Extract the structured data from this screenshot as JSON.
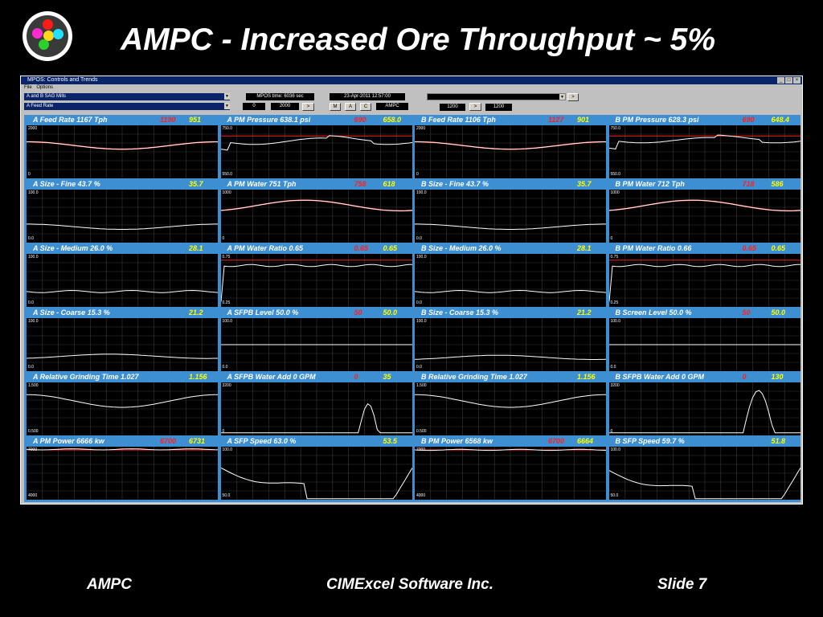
{
  "slide": {
    "title": "AMPC - Increased Ore Throughput ~ 5%",
    "footer_left": "AMPC",
    "footer_center": "CIMExcel Software Inc.",
    "footer_right": "Slide 7"
  },
  "window": {
    "title": "MPOS: Controls and Trends",
    "menu": [
      "File",
      "Options"
    ],
    "controls_buttons": [
      "_",
      "□",
      "×"
    ],
    "select1": "A and B SAG Mills",
    "select2": "A Feed Rate",
    "mpos_time": "MPOS time: 6036  sec",
    "date": "23-Apr-2011  12:57:00",
    "range_min": "0",
    "range_max": "2000",
    "nav_next": ">",
    "mode_buttons": [
      "M",
      "A",
      "C"
    ],
    "mode_value": "AMPC",
    "right_value_a": "1200",
    "right_value_b": "1200",
    "dropdown_arrow": "▼"
  },
  "colors": {
    "panel_header": "#3d8fd1",
    "setpoint": "#ff2020",
    "value": "#ffff00",
    "trend": "#ffffff",
    "limit": "#ff2020"
  },
  "panels": [
    {
      "title": "A Feed Rate   1167  Tph",
      "sp": "1190",
      "pv": "951",
      "axis_top": "2000",
      "axis_bottom": "0",
      "redline": null
    },
    {
      "title": "A PM Pressure   638.1  psi",
      "sp": "690",
      "pv": "658.0",
      "axis_top": "750.0",
      "axis_bottom": "550.0",
      "redline": 0.2
    },
    {
      "title": "B Feed Rate   1106  Tph",
      "sp": "1127",
      "pv": "901",
      "axis_top": "2000",
      "axis_bottom": "0",
      "redline": null
    },
    {
      "title": "B PM Pressure   628.3  psi",
      "sp": "690",
      "pv": "648.4",
      "axis_top": "750.0",
      "axis_bottom": "550.0",
      "redline": 0.2
    },
    {
      "title": "A Size - Fine   43.7  %",
      "sp": "",
      "pv": "35.7",
      "axis_top": "100.0",
      "axis_bottom": "0.0",
      "redline": null
    },
    {
      "title": "A PM Water   751  Tph",
      "sp": "758",
      "pv": "618",
      "axis_top": "1000",
      "axis_bottom": "0",
      "redline": null
    },
    {
      "title": "B Size - Fine   43.7  %",
      "sp": "",
      "pv": "35.7",
      "axis_top": "100.0",
      "axis_bottom": "0.0",
      "redline": null
    },
    {
      "title": "B PM Water   712  Tph",
      "sp": "718",
      "pv": "586",
      "axis_top": "1000",
      "axis_bottom": "0",
      "redline": null
    },
    {
      "title": "A Size - Medium   26.0  %",
      "sp": "",
      "pv": "28.1",
      "axis_top": "100.0",
      "axis_bottom": "0.0",
      "redline": null
    },
    {
      "title": "A PM Water Ratio   0.65",
      "sp": "0.65",
      "pv": "0.65",
      "axis_top": "0.75",
      "axis_bottom": "0.25",
      "redline": 0.12
    },
    {
      "title": "B Size - Medium   26.0  %",
      "sp": "",
      "pv": "28.1",
      "axis_top": "100.0",
      "axis_bottom": "0.0",
      "redline": null
    },
    {
      "title": "B PM Water Ratio   0.66",
      "sp": "0.65",
      "pv": "0.65",
      "axis_top": "0.75",
      "axis_bottom": "0.25",
      "redline": 0.12
    },
    {
      "title": "A Size - Coarse   15.3  %",
      "sp": "",
      "pv": "21.2",
      "axis_top": "100.0",
      "axis_bottom": "0.0",
      "redline": null
    },
    {
      "title": "A SFPB Level   50.0  %",
      "sp": "50",
      "pv": "50.0",
      "axis_top": "100.0",
      "axis_bottom": "0.0",
      "redline": null
    },
    {
      "title": "B Size - Coarse   15.3  %",
      "sp": "",
      "pv": "21.2",
      "axis_top": "100.0",
      "axis_bottom": "0.0",
      "redline": null
    },
    {
      "title": "B Screen Level   50.0  %",
      "sp": "50",
      "pv": "50.0",
      "axis_top": "100.0",
      "axis_bottom": "0.0",
      "redline": null
    },
    {
      "title": "A Relative Grinding Time   1.027",
      "sp": "",
      "pv": "1.156",
      "axis_top": "1.500",
      "axis_bottom": "0.500",
      "redline": null
    },
    {
      "title": "A SFPB Water Add   0  GPM",
      "sp": "0",
      "pv": "35",
      "axis_top": "3200",
      "axis_bottom": "0",
      "redline": null
    },
    {
      "title": "B Relative Grinding Time   1.027",
      "sp": "",
      "pv": "1.156",
      "axis_top": "1.500",
      "axis_bottom": "0.500",
      "redline": null
    },
    {
      "title": "B SFPB Water Add   0  GPM",
      "sp": "0",
      "pv": "130",
      "axis_top": "3200",
      "axis_bottom": "0",
      "redline": null
    },
    {
      "title": "A PM Power   6666  kw",
      "sp": "6700",
      "pv": "6731",
      "axis_top": "7000",
      "axis_bottom": "4000",
      "redline": 0.06
    },
    {
      "title": "A SFP Speed   63.0  %",
      "sp": "",
      "pv": "53.5",
      "axis_top": "100.0",
      "axis_bottom": "50.0",
      "redline": null
    },
    {
      "title": "B PM Power   6568  kw",
      "sp": "6700",
      "pv": "6664",
      "axis_top": "7000",
      "axis_bottom": "4000",
      "redline": 0.06
    },
    {
      "title": "B SFP Speed   59.7  %",
      "sp": "",
      "pv": "51.8",
      "axis_top": "100.0",
      "axis_bottom": "50.0",
      "redline": null
    }
  ]
}
